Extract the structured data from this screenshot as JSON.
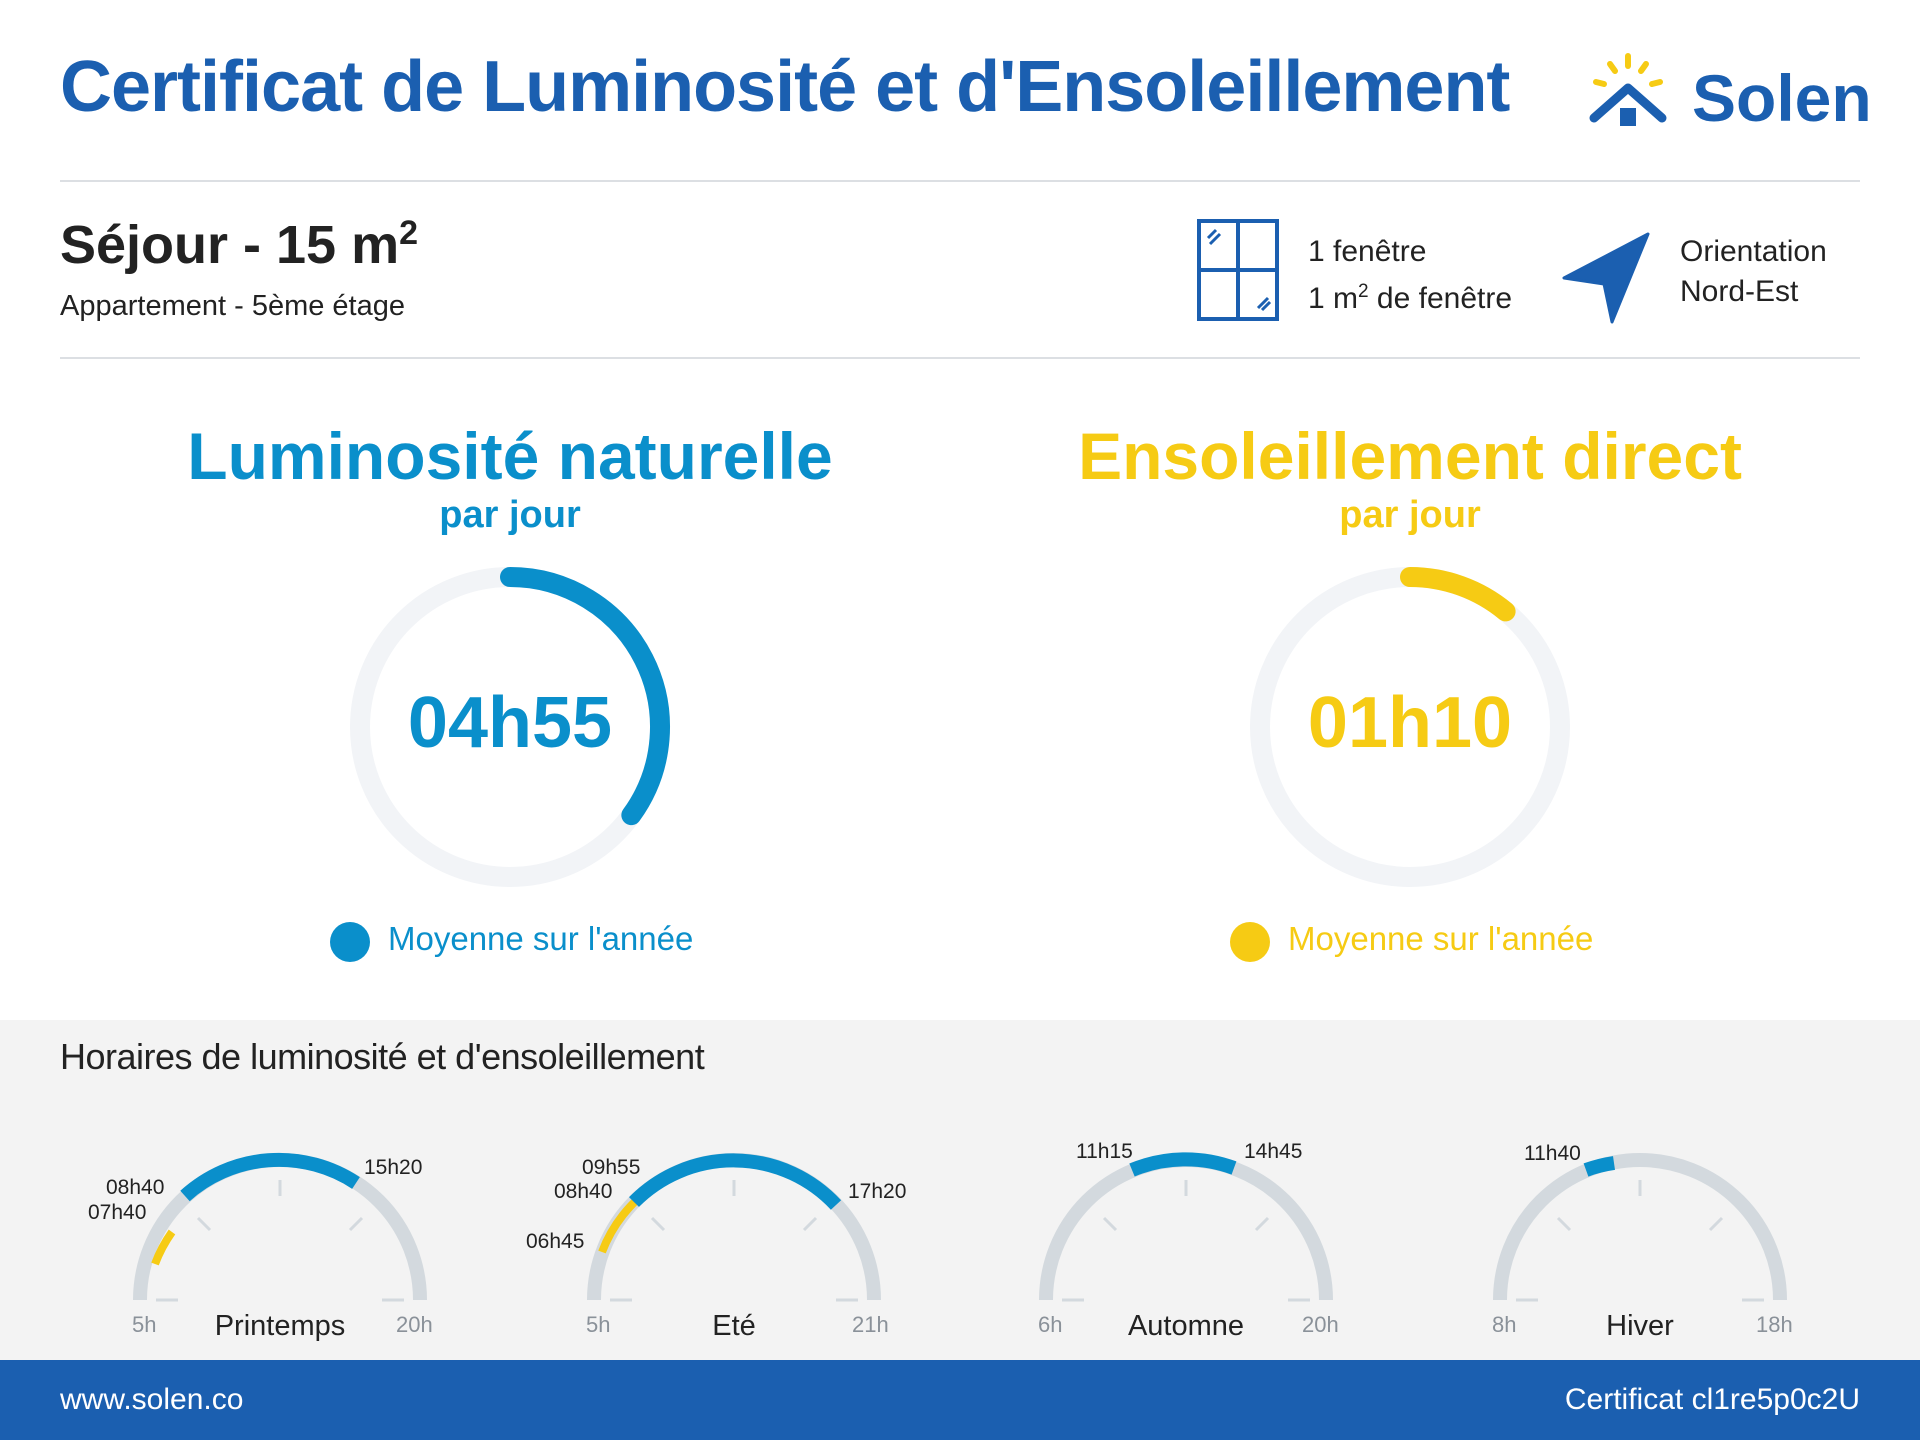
{
  "header": {
    "title": "Certificat de Luminosité et d'Ensoleillement",
    "brand": "Solen"
  },
  "room": {
    "name": "Séjour - 15 m",
    "area_exponent": "2",
    "subtitle": "Appartement - 5ème étage",
    "windows_count": "1 fenêtre",
    "window_area_prefix": "1 m",
    "window_area_exponent": "2",
    "window_area_suffix": " de fenêtre",
    "orientation_label": "Orientation",
    "orientation_value": "Nord-Est"
  },
  "luminosite": {
    "title": "Luminosité naturelle",
    "subtitle": "par jour",
    "value": "04h55",
    "legend": "Moyenne sur l'année",
    "color": "#0a8fcb",
    "fraction": 0.35
  },
  "ensoleillement": {
    "title": "Ensoleillement direct",
    "subtitle": "par jour",
    "value": "01h10",
    "legend": "Moyenne sur l'année",
    "color": "#f6cb14",
    "fraction": 0.11
  },
  "schedule": {
    "title": "Horaires de luminosité et d'ensoleillement",
    "seasons": [
      {
        "name": "Printemps",
        "start_label": "5h",
        "end_label": "20h",
        "sun_from": "07h40",
        "sun_to": "08h40",
        "light_from": "08h40",
        "light_to": "15h20"
      },
      {
        "name": "Eté",
        "start_label": "5h",
        "end_label": "21h",
        "sun_from": "06h45",
        "sun_to": "09h55",
        "light_from": "08h40",
        "light_to": "17h20"
      },
      {
        "name": "Automne",
        "start_label": "6h",
        "end_label": "20h",
        "light_from": "11h15",
        "light_to": "14h45"
      },
      {
        "name": "Hiver",
        "start_label": "8h",
        "end_label": "18h",
        "light_from": "11h40"
      }
    ]
  },
  "footer": {
    "url": "www.solen.co",
    "certificate": "Certificat cl1re5p0c2U"
  },
  "colors": {
    "brand_blue": "#1b5fb0",
    "light_blue": "#0a8fcb",
    "sun_yellow": "#f6cb14",
    "track_grey": "#d3d9de",
    "ring_grey": "#f2f4f7"
  }
}
